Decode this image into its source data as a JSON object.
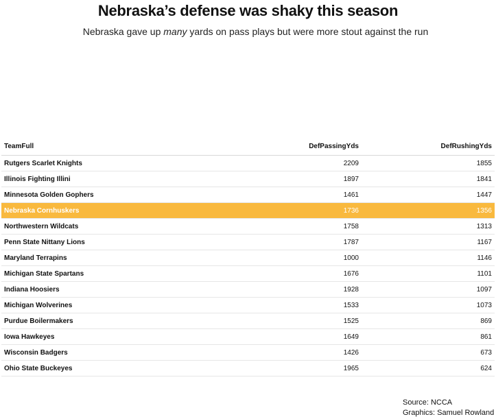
{
  "title": "Nebraska’s defense was shaky this season",
  "subtitle_before": "Nebraska gave up ",
  "subtitle_em": "many",
  "subtitle_after": " yards on pass plays but were more stout against the run",
  "source": "Source: NCCA",
  "credit": "Graphics: Samuel Rowland",
  "chart_data": {
    "type": "table",
    "columns": [
      "TeamFull",
      "DefPassingYds",
      "DefRushingYds"
    ],
    "highlight_color": "#f9b93e",
    "highlight_row": "Nebraska Cornhuskers",
    "rows": [
      [
        "Rutgers Scarlet Knights",
        "2209",
        "1855"
      ],
      [
        "Illinois Fighting Illini",
        "1897",
        "1841"
      ],
      [
        "Minnesota Golden Gophers",
        "1461",
        "1447"
      ],
      [
        "Nebraska Cornhuskers",
        "1736",
        "1356"
      ],
      [
        "Northwestern Wildcats",
        "1758",
        "1313"
      ],
      [
        "Penn State Nittany Lions",
        "1787",
        "1167"
      ],
      [
        "Maryland Terrapins",
        "1000",
        "1146"
      ],
      [
        "Michigan State Spartans",
        "1676",
        "1101"
      ],
      [
        "Indiana Hoosiers",
        "1928",
        "1097"
      ],
      [
        "Michigan Wolverines",
        "1533",
        "1073"
      ],
      [
        "Purdue Boilermakers",
        "1525",
        "869"
      ],
      [
        "Iowa Hawkeyes",
        "1649",
        "861"
      ],
      [
        "Wisconsin Badgers",
        "1426",
        "673"
      ],
      [
        "Ohio State Buckeyes",
        "1965",
        "624"
      ]
    ]
  }
}
